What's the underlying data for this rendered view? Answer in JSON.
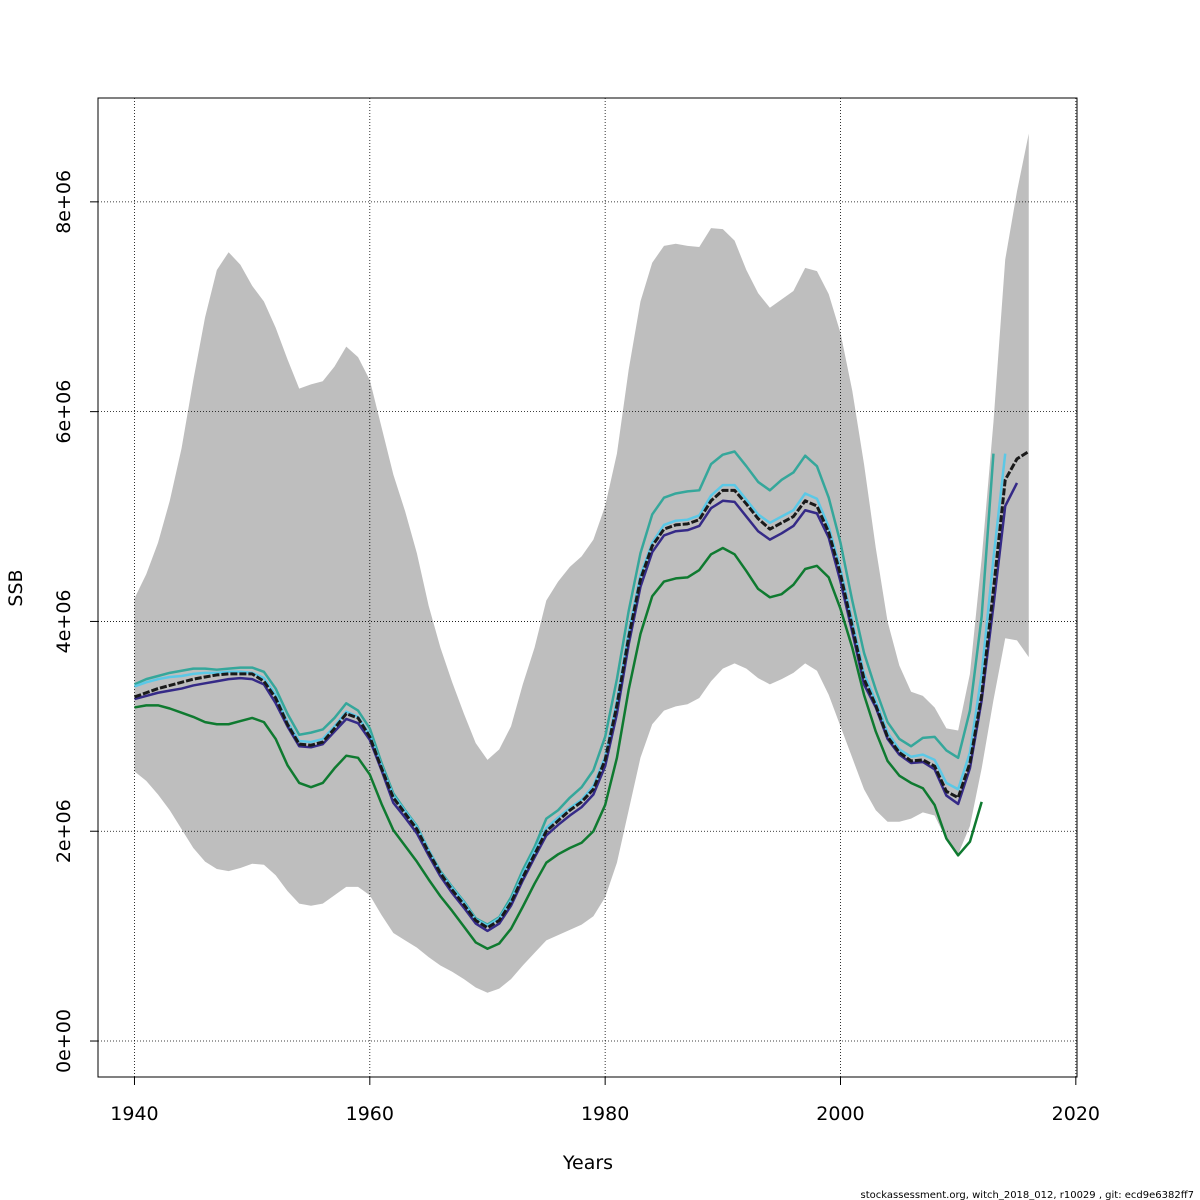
{
  "chart_data": {
    "type": "line",
    "x_label": "Years",
    "y_label": "SSB",
    "footnote": "stockassessment.org, witch_2018_012, r10029 , git: ecd9e6382ff7",
    "xlim": [
      1936.9,
      2020.1
    ],
    "ylim": [
      -343000,
      8990000
    ],
    "xticks": [
      1940,
      1960,
      1980,
      2000,
      2020
    ],
    "yticks": [
      {
        "value": 0,
        "label": "0e+00"
      },
      {
        "value": 2000000,
        "label": "2e+06"
      },
      {
        "value": 4000000,
        "label": "4e+06"
      },
      {
        "value": 6000000,
        "label": "6e+06"
      },
      {
        "value": 8000000,
        "label": "8e+06"
      }
    ],
    "grid": true,
    "x": [
      1940,
      1941,
      1942,
      1943,
      1944,
      1945,
      1946,
      1947,
      1948,
      1949,
      1950,
      1951,
      1952,
      1953,
      1954,
      1955,
      1956,
      1957,
      1958,
      1959,
      1960,
      1961,
      1962,
      1963,
      1964,
      1965,
      1966,
      1967,
      1968,
      1969,
      1970,
      1971,
      1972,
      1973,
      1974,
      1975,
      1976,
      1977,
      1978,
      1979,
      1980,
      1981,
      1982,
      1983,
      1984,
      1985,
      1986,
      1987,
      1988,
      1989,
      1990,
      1991,
      1992,
      1993,
      1994,
      1995,
      1996,
      1997,
      1998,
      1999,
      2000,
      2001,
      2002,
      2003,
      2004,
      2005,
      2006,
      2007,
      2008,
      2009,
      2010,
      2011,
      2012,
      2013,
      2014,
      2015,
      2016
    ],
    "band": {
      "color": "#bebebe",
      "upper": [
        4220000.0,
        4450000.0,
        4750000.0,
        5150000.0,
        5650000.0,
        6300000.0,
        6900000.0,
        7350000.0,
        7520000.0,
        7400000.0,
        7200000.0,
        7050000.0,
        6800000.0,
        6500000.0,
        6220000.0,
        6260000.0,
        6290000.0,
        6430000.0,
        6620000.0,
        6520000.0,
        6300000.0,
        5850000.0,
        5400000.0,
        5050000.0,
        4650000.0,
        4150000.0,
        3750000.0,
        3420000.0,
        3120000.0,
        2840000.0,
        2680000.0,
        2780000.0,
        3000000.0,
        3400000.0,
        3750000.0,
        4200000.0,
        4380000.0,
        4520000.0,
        4620000.0,
        4780000.0,
        5100000.0,
        5600000.0,
        6400000.0,
        7050000.0,
        7420000.0,
        7580000.0,
        7600000.0,
        7580000.0,
        7570000.0,
        7750000.0,
        7740000.0,
        7630000.0,
        7350000.0,
        7130000.0,
        6990000.0,
        7070000.0,
        7150000.0,
        7370000.0,
        7340000.0,
        7120000.0,
        6750000.0,
        6200000.0,
        5500000.0,
        4700000.0,
        4000000.0,
        3580000.0,
        3330000.0,
        3290000.0,
        3180000.0,
        2980000.0,
        2960000.0,
        3500000.0,
        4600000.0,
        5900000.0,
        7450000.0,
        8100000.0,
        8650000.0
      ],
      "lower": [
        2570000.0,
        2480000.0,
        2350000.0,
        2200000.0,
        2020000.0,
        1840000.0,
        1710000.0,
        1640000.0,
        1620000.0,
        1650000.0,
        1690000.0,
        1680000.0,
        1580000.0,
        1430000.0,
        1310000.0,
        1290000.0,
        1310000.0,
        1390000.0,
        1470000.0,
        1470000.0,
        1390000.0,
        1200000.0,
        1030000.0,
        960000.0,
        890000.0,
        800000.0,
        720000.0,
        660000.0,
        590000.0,
        510000.0,
        460000.0,
        500000.0,
        590000.0,
        720000.0,
        840000.0,
        960000.0,
        1010000.0,
        1060000.0,
        1110000.0,
        1190000.0,
        1370000.0,
        1700000.0,
        2200000.0,
        2700000.0,
        3020000.0,
        3150000.0,
        3190000.0,
        3210000.0,
        3270000.0,
        3430000.0,
        3550000.0,
        3600000.0,
        3550000.0,
        3460000.0,
        3400000.0,
        3450000.0,
        3510000.0,
        3600000.0,
        3530000.0,
        3300000.0,
        3000000.0,
        2700000.0,
        2400000.0,
        2200000.0,
        2090000.0,
        2090000.0,
        2120000.0,
        2180000.0,
        2150000.0,
        1920000.0,
        1780000.0,
        2050000.0,
        2600000.0,
        3250000.0,
        3840000.0,
        3820000.0,
        3660000.0
      ]
    },
    "series": [
      {
        "color": "#35a79b",
        "values": [
          3400000.0,
          3450000.0,
          3480000.0,
          3510000.0,
          3530000.0,
          3550000.0,
          3550000.0,
          3540000.0,
          3550000.0,
          3560000.0,
          3560000.0,
          3520000.0,
          3360000.0,
          3120000.0,
          2920000.0,
          2940000.0,
          2970000.0,
          3080000.0,
          3220000.0,
          3150000.0,
          2980000.0,
          2650000.0,
          2360000.0,
          2200000.0,
          2050000.0,
          1820000.0,
          1620000.0,
          1470000.0,
          1330000.0,
          1170000.0,
          1110000.0,
          1180000.0,
          1370000.0,
          1630000.0,
          1850000.0,
          2120000.0,
          2200000.0,
          2320000.0,
          2420000.0,
          2580000.0,
          2900000.0,
          3450000.0,
          4100000.0,
          4650000.0,
          5020000.0,
          5180000.0,
          5220000.0,
          5240000.0,
          5250000.0,
          5500000.0,
          5590000.0,
          5620000.0,
          5480000.0,
          5330000.0,
          5250000.0,
          5350000.0,
          5420000.0,
          5580000.0,
          5480000.0,
          5180000.0,
          4750000.0,
          4200000.0,
          3700000.0,
          3350000.0,
          3040000.0,
          2880000.0,
          2810000.0,
          2890000.0,
          2900000.0,
          2770000.0,
          2700000.0,
          3150000.0,
          4050000.0,
          5600000.0,
          null,
          null,
          null
        ]
      },
      {
        "color": "#5bc8e6",
        "values": [
          3380000.0,
          3420000.0,
          3450000.0,
          3470000.0,
          3480000.0,
          3500000.0,
          3510000.0,
          3510000.0,
          3520000.0,
          3520000.0,
          3510000.0,
          3460000.0,
          3300000.0,
          3040000.0,
          2860000.0,
          2850000.0,
          2880000.0,
          3000000.0,
          3140000.0,
          3090000.0,
          2920000.0,
          2620000.0,
          2340000.0,
          2190000.0,
          2040000.0,
          1820000.0,
          1610000.0,
          1460000.0,
          1320000.0,
          1160000.0,
          1100000.0,
          1170000.0,
          1340000.0,
          1590000.0,
          1810000.0,
          2030000.0,
          2130000.0,
          2220000.0,
          2300000.0,
          2430000.0,
          2710000.0,
          3240000.0,
          3900000.0,
          4440000.0,
          4750000.0,
          4920000.0,
          4960000.0,
          4970000.0,
          5010000.0,
          5200000.0,
          5300000.0,
          5300000.0,
          5160000.0,
          5020000.0,
          4940000.0,
          5000000.0,
          5060000.0,
          5220000.0,
          5170000.0,
          4900000.0,
          4500000.0,
          4000000.0,
          3500000.0,
          3240000.0,
          2940000.0,
          2780000.0,
          2710000.0,
          2730000.0,
          2680000.0,
          2460000.0,
          2400000.0,
          2750000.0,
          3500000.0,
          4600000.0,
          5600000.0,
          null,
          null
        ]
      },
      {
        "color": "#0f7a30",
        "values": [
          3180000.0,
          3200000.0,
          3200000.0,
          3170000.0,
          3130000.0,
          3090000.0,
          3040000.0,
          3020000.0,
          3020000.0,
          3050000.0,
          3080000.0,
          3040000.0,
          2880000.0,
          2630000.0,
          2460000.0,
          2420000.0,
          2460000.0,
          2600000.0,
          2720000.0,
          2700000.0,
          2540000.0,
          2260000.0,
          2010000.0,
          1860000.0,
          1710000.0,
          1540000.0,
          1380000.0,
          1240000.0,
          1090000.0,
          940000.0,
          880000.0,
          930000.0,
          1070000.0,
          1280000.0,
          1500000.0,
          1700000.0,
          1780000.0,
          1840000.0,
          1890000.0,
          2000000.0,
          2250000.0,
          2700000.0,
          3350000.0,
          3880000.0,
          4240000.0,
          4380000.0,
          4410000.0,
          4420000.0,
          4490000.0,
          4640000.0,
          4700000.0,
          4640000.0,
          4480000.0,
          4310000.0,
          4230000.0,
          4260000.0,
          4350000.0,
          4500000.0,
          4530000.0,
          4420000.0,
          4120000.0,
          3750000.0,
          3300000.0,
          2950000.0,
          2670000.0,
          2530000.0,
          2460000.0,
          2410000.0,
          2250000.0,
          1930000.0,
          1770000.0,
          1900000.0,
          2280000.0,
          null,
          null,
          null,
          null
        ]
      },
      {
        "color": "#352a87",
        "values": [
          3260000.0,
          3290000.0,
          3320000.0,
          3340000.0,
          3360000.0,
          3390000.0,
          3410000.0,
          3430000.0,
          3450000.0,
          3460000.0,
          3450000.0,
          3400000.0,
          3220000.0,
          3000000.0,
          2810000.0,
          2800000.0,
          2830000.0,
          2950000.0,
          3070000.0,
          3030000.0,
          2870000.0,
          2580000.0,
          2270000.0,
          2130000.0,
          1980000.0,
          1770000.0,
          1570000.0,
          1410000.0,
          1270000.0,
          1120000.0,
          1050000.0,
          1120000.0,
          1290000.0,
          1530000.0,
          1750000.0,
          1960000.0,
          2060000.0,
          2150000.0,
          2230000.0,
          2350000.0,
          2620000.0,
          3120000.0,
          3780000.0,
          4330000.0,
          4660000.0,
          4820000.0,
          4860000.0,
          4870000.0,
          4910000.0,
          5080000.0,
          5150000.0,
          5140000.0,
          5000000.0,
          4860000.0,
          4780000.0,
          4840000.0,
          4910000.0,
          5060000.0,
          5030000.0,
          4800000.0,
          4380000.0,
          3900000.0,
          3400000.0,
          3180000.0,
          2880000.0,
          2730000.0,
          2650000.0,
          2660000.0,
          2590000.0,
          2340000.0,
          2260000.0,
          2600000.0,
          3250000.0,
          4150000.0,
          5100000.0,
          5320000.0,
          null
        ]
      },
      {
        "color": "#1a1a1a",
        "dashed": true,
        "values": [
          3280000.0,
          3320000.0,
          3360000.0,
          3390000.0,
          3420000.0,
          3450000.0,
          3470000.0,
          3490000.0,
          3500000.0,
          3500000.0,
          3500000.0,
          3430000.0,
          3270000.0,
          3020000.0,
          2830000.0,
          2820000.0,
          2850000.0,
          2980000.0,
          3120000.0,
          3080000.0,
          2900000.0,
          2600000.0,
          2320000.0,
          2170000.0,
          2020000.0,
          1800000.0,
          1600000.0,
          1440000.0,
          1300000.0,
          1150000.0,
          1080000.0,
          1150000.0,
          1320000.0,
          1560000.0,
          1780000.0,
          2000000.0,
          2100000.0,
          2200000.0,
          2280000.0,
          2400000.0,
          2680000.0,
          3200000.0,
          3850000.0,
          4400000.0,
          4720000.0,
          4880000.0,
          4920000.0,
          4930000.0,
          4970000.0,
          5150000.0,
          5250000.0,
          5250000.0,
          5120000.0,
          4980000.0,
          4880000.0,
          4940000.0,
          5000000.0,
          5150000.0,
          5100000.0,
          4850000.0,
          4450000.0,
          3950000.0,
          3450000.0,
          3200000.0,
          2900000.0,
          2750000.0,
          2670000.0,
          2680000.0,
          2620000.0,
          2380000.0,
          2320000.0,
          2650000.0,
          3300000.0,
          4300000.0,
          5350000.0,
          5550000.0,
          5620000.0
        ]
      }
    ]
  }
}
